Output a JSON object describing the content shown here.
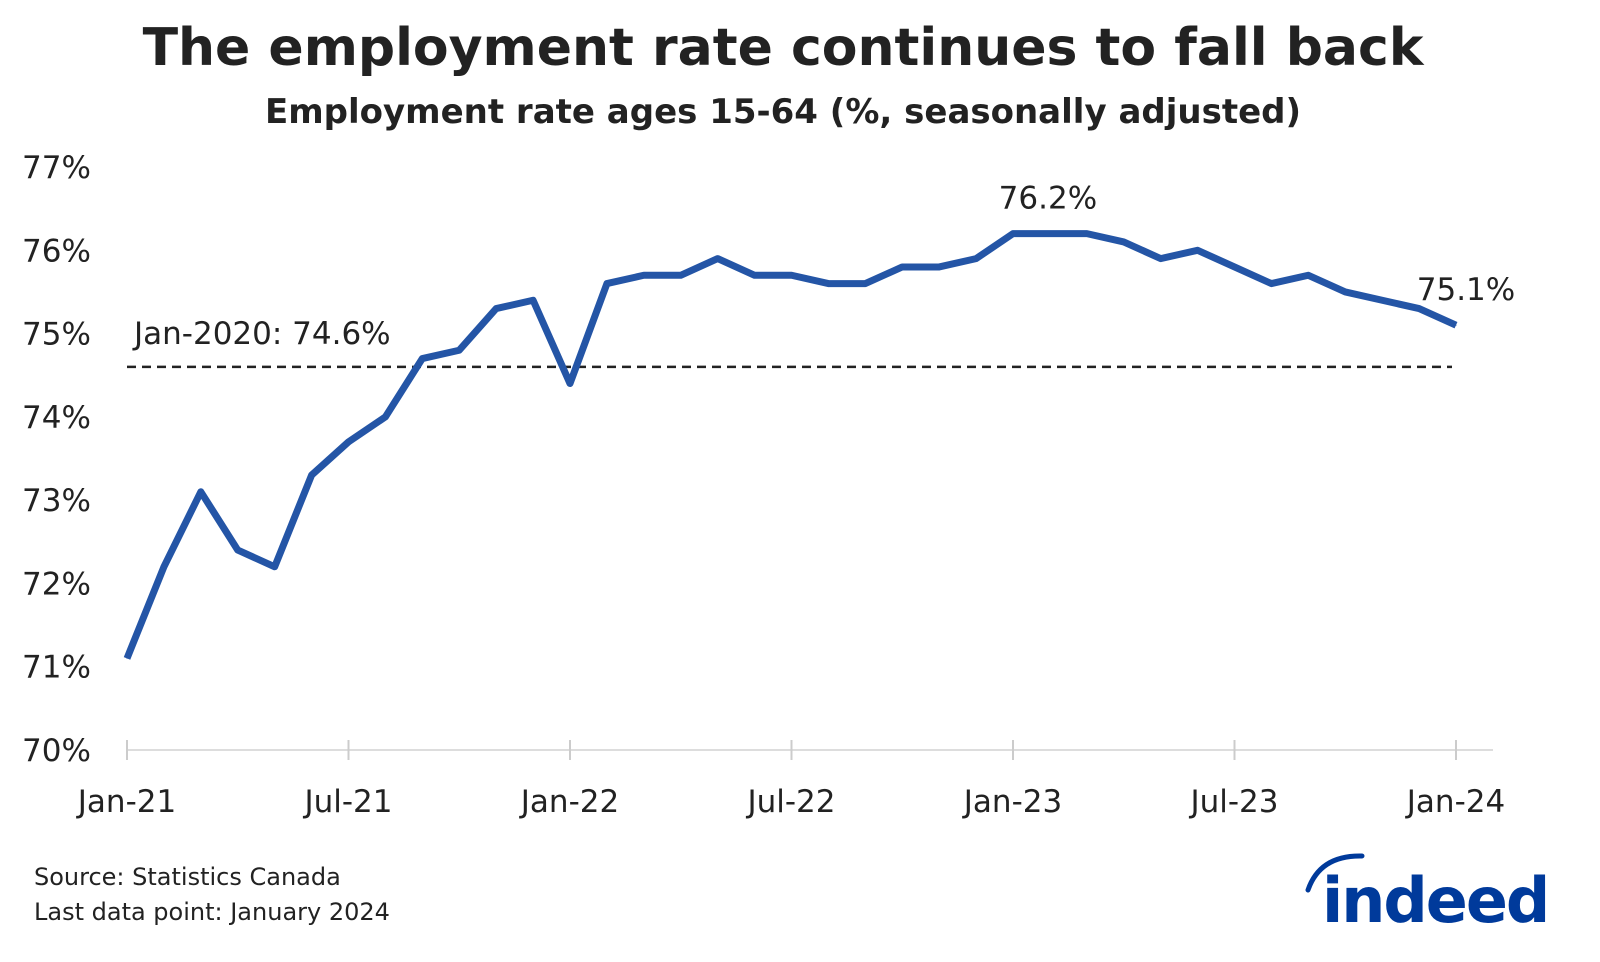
{
  "title": "The employment rate continues to fall back",
  "subtitle": "Employment rate ages 15-64 (%, seasonally adjusted)",
  "source": "Source: Statistics Canada",
  "last_data_point": "Last data point: January 2024",
  "logo_text": "indeed",
  "colors": {
    "line": "#2455a6",
    "reference": "#222222",
    "logo": "#003a9b"
  },
  "chart_data": {
    "type": "line",
    "title": "The employment rate continues to fall back",
    "subtitle": "Employment rate ages 15-64 (%, seasonally adjusted)",
    "xlabel": "",
    "ylabel": "",
    "ylim": [
      70,
      77
    ],
    "y_ticks": [
      70,
      71,
      72,
      73,
      74,
      75,
      76,
      77
    ],
    "y_tick_labels": [
      "70%",
      "71%",
      "72%",
      "73%",
      "74%",
      "75%",
      "76%",
      "77%"
    ],
    "x_tick_labels": [
      "Jan-21",
      "Jul-21",
      "Jan-22",
      "Jul-22",
      "Jan-23",
      "Jul-23",
      "Jan-24"
    ],
    "grid": false,
    "x": [
      "2021-01",
      "2021-02",
      "2021-03",
      "2021-04",
      "2021-05",
      "2021-06",
      "2021-07",
      "2021-08",
      "2021-09",
      "2021-10",
      "2021-11",
      "2021-12",
      "2022-01",
      "2022-02",
      "2022-03",
      "2022-04",
      "2022-05",
      "2022-06",
      "2022-07",
      "2022-08",
      "2022-09",
      "2022-10",
      "2022-11",
      "2022-12",
      "2023-01",
      "2023-02",
      "2023-03",
      "2023-04",
      "2023-05",
      "2023-06",
      "2023-07",
      "2023-08",
      "2023-09",
      "2023-10",
      "2023-11",
      "2023-12",
      "2024-01"
    ],
    "series": [
      {
        "values": [
          71.1,
          72.2,
          73.1,
          72.4,
          72.2,
          73.3,
          73.7,
          74.0,
          74.7,
          74.8,
          75.3,
          75.4,
          74.4,
          75.6,
          75.7,
          75.7,
          75.9,
          75.7,
          75.7,
          75.6,
          75.6,
          75.8,
          75.8,
          75.9,
          76.2,
          76.2,
          76.2,
          76.1,
          75.9,
          76.0,
          75.8,
          75.6,
          75.7,
          75.5,
          75.4,
          75.3,
          75.1
        ]
      }
    ],
    "reference_line": {
      "value": 74.6,
      "label": "Jan-2020: 74.6%"
    },
    "annotations": [
      {
        "text": "76.2%",
        "x": "2023-02",
        "y": 76.2
      },
      {
        "text": "75.1%",
        "x": "2024-01",
        "y": 75.1
      }
    ]
  }
}
